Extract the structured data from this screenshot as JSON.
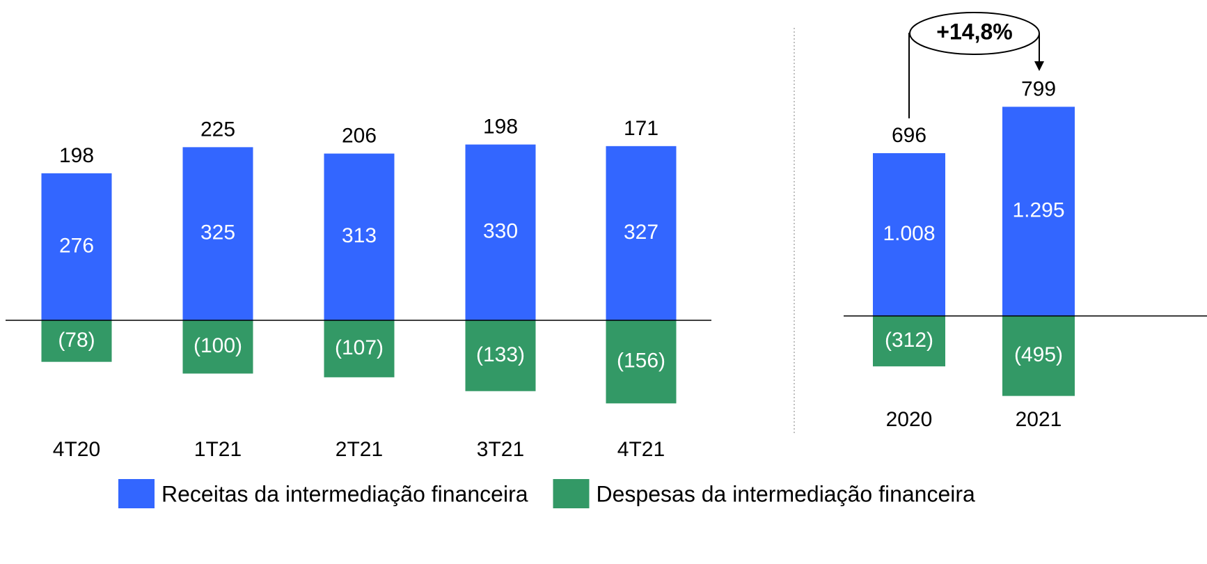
{
  "chart_data": [
    {
      "type": "bar",
      "categories": [
        "4T20",
        "1T21",
        "2T21",
        "3T21",
        "4T21"
      ],
      "series": [
        {
          "name": "Receitas da intermediação financeira",
          "color": "#3366ff",
          "values": [
            276,
            325,
            313,
            330,
            327
          ]
        },
        {
          "name": "Despesas da intermediação financeira",
          "color": "#339966",
          "values": [
            -78,
            -100,
            -107,
            -133,
            -156
          ],
          "value_labels": [
            "(78)",
            "(100)",
            "(107)",
            "(133)",
            "(156)"
          ]
        }
      ],
      "totals": [
        198,
        225,
        206,
        198,
        171
      ],
      "ylim": [
        -200,
        400
      ]
    },
    {
      "type": "bar",
      "categories": [
        "2020",
        "2021"
      ],
      "series": [
        {
          "color": "#3366ff",
          "values": [
            1008,
            1295
          ],
          "value_labels": [
            "1.008",
            "1.295"
          ]
        },
        {
          "color": "#339966",
          "values": [
            -312,
            -495
          ],
          "value_labels": [
            "(312)",
            "(495)"
          ]
        }
      ],
      "totals": [
        696,
        799
      ],
      "annotation": "+14,8%",
      "ylim": [
        -600,
        1400
      ]
    }
  ]
}
